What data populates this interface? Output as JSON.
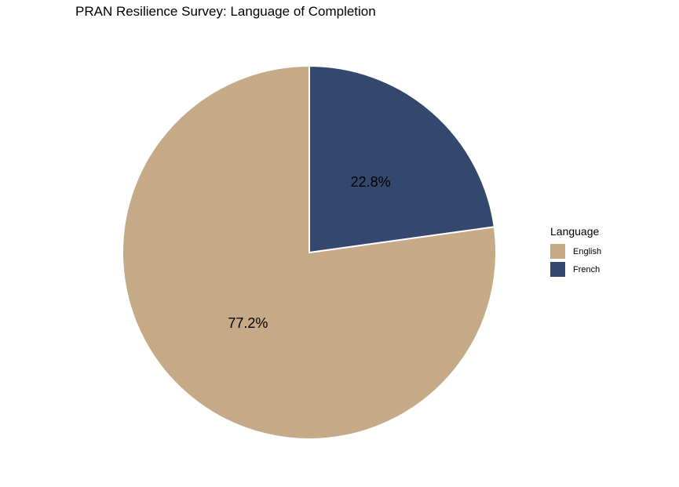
{
  "chart_data": {
    "type": "pie",
    "title": "PRAN Resilience Survey: Language of Completion",
    "legend_title": "Language",
    "legend_position": "right",
    "slices": [
      {
        "label": "English",
        "value": 77.2,
        "value_label": "77.2%",
        "color": "#c6a987"
      },
      {
        "label": "French",
        "value": 22.8,
        "value_label": "22.8%",
        "color": "#34486e"
      }
    ]
  }
}
